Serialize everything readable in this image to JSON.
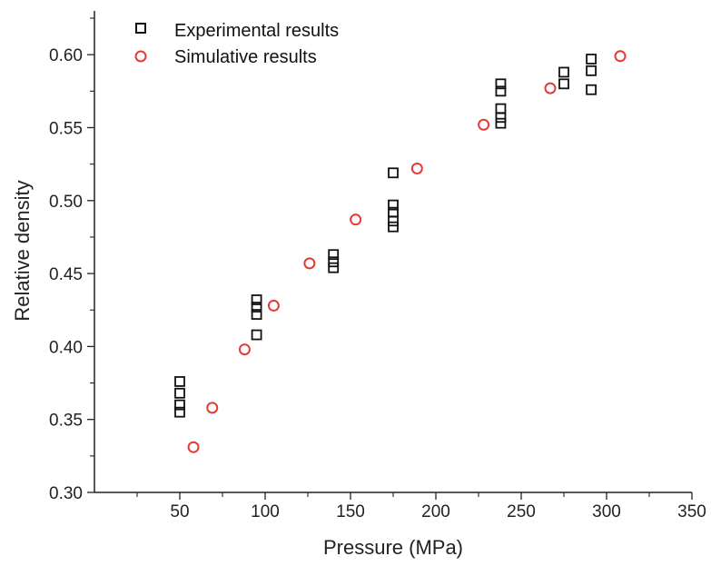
{
  "chart_data": {
    "type": "scatter",
    "title": "",
    "xlabel": "Pressure (MPa)",
    "ylabel": "Relative density",
    "xlim": [
      0,
      350
    ],
    "ylim": [
      0.3,
      0.63
    ],
    "xticks": [
      50,
      100,
      150,
      200,
      250,
      300,
      350
    ],
    "xtick_labels": [
      "50",
      "100",
      "150",
      "200",
      "250",
      "300",
      "350"
    ],
    "yticks": [
      0.3,
      0.35,
      0.4,
      0.45,
      0.5,
      0.55,
      0.6
    ],
    "ytick_labels": [
      "0.30",
      "0.35",
      "0.40",
      "0.45",
      "0.50",
      "0.55",
      "0.60"
    ],
    "grid": false,
    "legend_position": "top-left",
    "series": [
      {
        "name": "Experimental results",
        "marker": "square",
        "color": "#111111",
        "points": [
          [
            50,
            0.355
          ],
          [
            50,
            0.36
          ],
          [
            50,
            0.368
          ],
          [
            50,
            0.376
          ],
          [
            95,
            0.408
          ],
          [
            95,
            0.422
          ],
          [
            95,
            0.427
          ],
          [
            95,
            0.432
          ],
          [
            140,
            0.454
          ],
          [
            140,
            0.458
          ],
          [
            140,
            0.463
          ],
          [
            175,
            0.482
          ],
          [
            175,
            0.486
          ],
          [
            175,
            0.492
          ],
          [
            175,
            0.497
          ],
          [
            175,
            0.519
          ],
          [
            238,
            0.553
          ],
          [
            238,
            0.557
          ],
          [
            238,
            0.563
          ],
          [
            238,
            0.575
          ],
          [
            238,
            0.58
          ],
          [
            275,
            0.58
          ],
          [
            275,
            0.588
          ],
          [
            291,
            0.576
          ],
          [
            291,
            0.589
          ],
          [
            291,
            0.597
          ]
        ]
      },
      {
        "name": "Simulative results",
        "marker": "circle",
        "color": "#e53935",
        "points": [
          [
            58,
            0.331
          ],
          [
            69,
            0.358
          ],
          [
            88,
            0.398
          ],
          [
            105,
            0.428
          ],
          [
            126,
            0.457
          ],
          [
            153,
            0.487
          ],
          [
            189,
            0.522
          ],
          [
            228,
            0.552
          ],
          [
            267,
            0.577
          ],
          [
            308,
            0.599
          ]
        ]
      }
    ]
  }
}
